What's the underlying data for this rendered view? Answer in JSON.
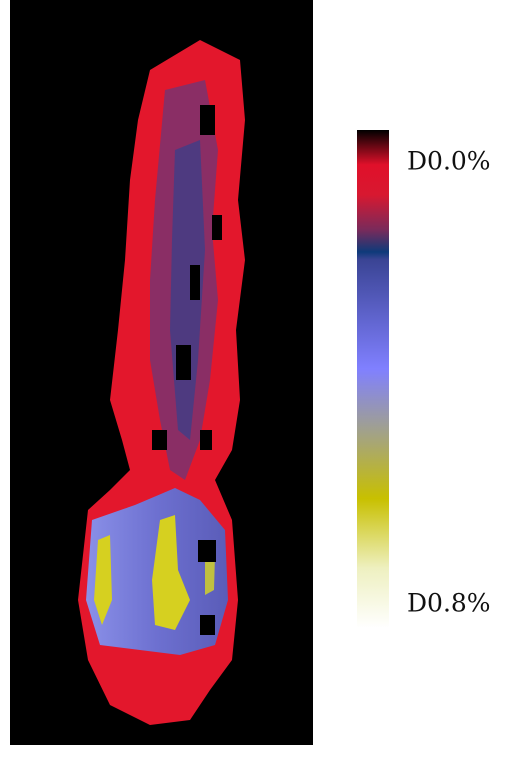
{
  "colorbar": {
    "top_label": "D0.0%",
    "bottom_label": "D0.8%"
  }
}
